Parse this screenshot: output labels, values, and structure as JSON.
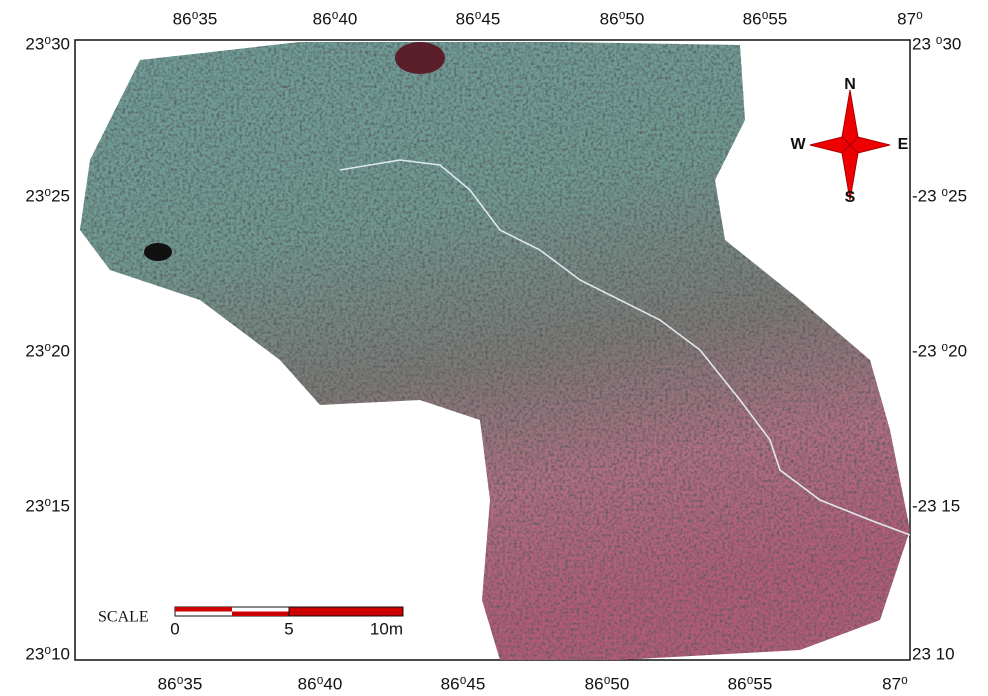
{
  "map": {
    "top_labels": [
      "86⁰35",
      "86⁰40",
      "86⁰45",
      "86⁰50",
      "86⁰55",
      "87⁰"
    ],
    "bottom_labels": [
      "86⁰35",
      "86⁰40",
      "86⁰45",
      "86⁰50",
      "86⁰55",
      "87⁰"
    ],
    "left_labels": [
      "23⁰30",
      "23⁰25",
      "23⁰20",
      "23⁰15",
      "23⁰10"
    ],
    "right_labels": [
      "23 ⁰30",
      "-23 ⁰25",
      "-23 ⁰20",
      "-23 15",
      "23 10"
    ],
    "compass": {
      "n": "N",
      "s": "S",
      "e": "E",
      "w": "W"
    },
    "scale": {
      "title": "SCALE",
      "ticks": [
        "0",
        "5",
        "10m"
      ]
    }
  }
}
